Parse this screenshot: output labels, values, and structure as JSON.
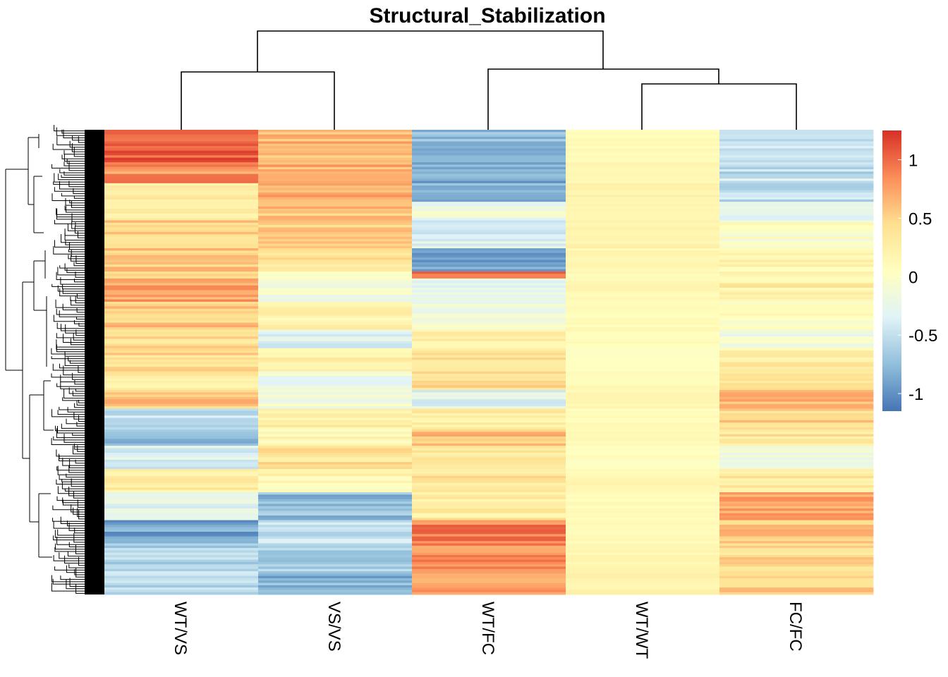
{
  "chart_data": {
    "type": "heatmap",
    "title": "Structural_Stabilization",
    "columns": [
      "WT/VS",
      "VS/VS",
      "WT/FC",
      "WT/WT",
      "FC/FC"
    ],
    "color_scale": {
      "colors": [
        "#4575b4",
        "#91bfdb",
        "#e0f3f8",
        "#ffffbf",
        "#fee090",
        "#fc8d59",
        "#d73027"
      ],
      "range": [
        -1.15,
        1.25
      ],
      "ticks": [
        1,
        0.5,
        0,
        -0.5,
        -1
      ],
      "tick_labels": [
        "1",
        "0.5",
        "0",
        "-0.5",
        "-1"
      ]
    },
    "row_groups": [
      {
        "rows": 14,
        "values": [
          1.05,
          0.65,
          -0.75,
          0.1,
          -0.45
        ]
      },
      {
        "rows": 6,
        "values": [
          0.8,
          0.7,
          -0.85,
          0.15,
          -0.55
        ]
      },
      {
        "rows": 3,
        "values": [
          1.1,
          0.6,
          -0.9,
          0.15,
          -0.4
        ]
      },
      {
        "rows": 8,
        "values": [
          0.35,
          0.75,
          -0.8,
          0.2,
          -0.5
        ]
      },
      {
        "rows": 8,
        "values": [
          0.2,
          0.6,
          -0.2,
          0.15,
          -0.35
        ]
      },
      {
        "rows": 12,
        "values": [
          0.5,
          0.55,
          -0.35,
          0.2,
          0.0
        ]
      },
      {
        "rows": 10,
        "values": [
          0.55,
          0.35,
          -0.9,
          0.15,
          0.2
        ]
      },
      {
        "rows": 3,
        "values": [
          0.5,
          0.1,
          0.9,
          0.1,
          0.2
        ]
      },
      {
        "rows": 10,
        "values": [
          0.75,
          -0.1,
          -0.2,
          0.15,
          0.25
        ]
      },
      {
        "rows": 12,
        "values": [
          0.55,
          0.2,
          -0.15,
          0.1,
          0.1
        ]
      },
      {
        "rows": 8,
        "values": [
          0.4,
          -0.3,
          0.3,
          0.1,
          -0.15
        ]
      },
      {
        "rows": 10,
        "values": [
          0.45,
          0.25,
          0.35,
          0.0,
          0.25
        ]
      },
      {
        "rows": 8,
        "values": [
          0.3,
          -0.2,
          0.45,
          0.1,
          0.45
        ]
      },
      {
        "rows": 8,
        "values": [
          0.55,
          -0.1,
          -0.3,
          0.15,
          0.6
        ]
      },
      {
        "rows": 9,
        "values": [
          -0.5,
          0.25,
          0.3,
          0.1,
          0.5
        ]
      },
      {
        "rows": 7,
        "values": [
          -0.8,
          0.1,
          0.6,
          0.1,
          0.35
        ]
      },
      {
        "rows": 10,
        "values": [
          -0.35,
          0.4,
          0.3,
          0.05,
          -0.15
        ]
      },
      {
        "rows": 10,
        "values": [
          0.25,
          0.15,
          0.35,
          0.15,
          0.3
        ]
      },
      {
        "rows": 12,
        "values": [
          -0.3,
          -0.75,
          0.3,
          0.1,
          0.7
        ]
      },
      {
        "rows": 10,
        "values": [
          -0.9,
          -0.45,
          0.9,
          0.1,
          0.6
        ]
      },
      {
        "rows": 12,
        "values": [
          -0.6,
          -0.6,
          0.85,
          0.15,
          0.45
        ]
      },
      {
        "rows": 10,
        "values": [
          -0.55,
          -0.8,
          0.8,
          0.2,
          0.5
        ]
      }
    ]
  }
}
